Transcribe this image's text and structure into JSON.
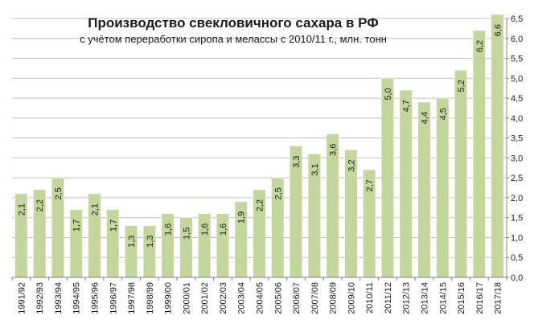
{
  "chart_data": {
    "type": "bar",
    "title": "Производство свекловичного сахара в РФ",
    "subtitle": "с учётом переработки сиропа и мелассы с 2010/11 г.,  млн. тонн",
    "categories": [
      "1991/92",
      "1992/93",
      "1993/94",
      "1994/95",
      "1995/96",
      "1996/97",
      "1997/98",
      "1998/99",
      "1999/00",
      "2000/01",
      "2001/02",
      "2002/03",
      "2003/04",
      "2004/05",
      "2005/06",
      "2006/07",
      "2007/08",
      "2008/09",
      "2009/10",
      "2010/11",
      "2011/12",
      "2012/13",
      "2013/14",
      "2014/15",
      "2015/16",
      "2016/17",
      "2017/18"
    ],
    "values": [
      2.1,
      2.2,
      2.5,
      1.7,
      2.1,
      1.7,
      1.3,
      1.3,
      1.6,
      1.5,
      1.6,
      1.6,
      1.9,
      2.2,
      2.5,
      3.3,
      3.1,
      3.6,
      3.2,
      2.7,
      5.0,
      4.7,
      4.4,
      4.5,
      5.2,
      6.2,
      6.6
    ],
    "value_labels": [
      "2,1",
      "2,2",
      "2,5",
      "1,7",
      "2,1",
      "1,7",
      "1,3",
      "1,3",
      "1,6",
      "1,5",
      "1,6",
      "1,6",
      "1,9",
      "2,2",
      "2,5",
      "3,3",
      "3,1",
      "3,6",
      "3,2",
      "2,7",
      "5,0",
      "4,7",
      "4,4",
      "4,5",
      "5,2",
      "6,2",
      "6,6"
    ],
    "y_ticks": [
      "0,0",
      "0,5",
      "1,0",
      "1,5",
      "2,0",
      "2,5",
      "3,0",
      "3,5",
      "4,0",
      "4,5",
      "5,0",
      "5,5",
      "6,0",
      "6,5"
    ],
    "ylim": [
      0,
      6.5
    ],
    "y_step": 0.5,
    "y_axis_side": "right",
    "grid": true,
    "colors": {
      "bar": "#c3d69b",
      "bar_edge": "#ffffff",
      "grid": "#bfbfbf",
      "axis": "#808080"
    }
  }
}
